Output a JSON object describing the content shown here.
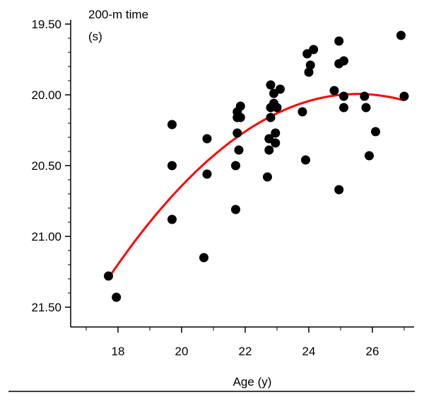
{
  "chart_data": {
    "type": "scatter",
    "ylabel_line1": "200-m time",
    "ylabel_line2": "(s)",
    "xlabel": "Age (y)",
    "xlim": [
      17,
      27.2
    ],
    "ylim": [
      21.65,
      19.45
    ],
    "y_inverted": true,
    "xticks": [
      18,
      20,
      22,
      24,
      26
    ],
    "xtick_labels": [
      "18",
      "20",
      "22",
      "24",
      "26"
    ],
    "yticks": [
      19.5,
      20.0,
      20.5,
      21.0,
      21.5
    ],
    "ytick_labels": [
      "19.50",
      "20.00",
      "20.50",
      "21.00",
      "21.50"
    ],
    "grid": false,
    "point_color": "#000000",
    "curve_color": "#ff0000",
    "points": [
      {
        "x": 17.7,
        "y": 21.28
      },
      {
        "x": 17.95,
        "y": 21.43
      },
      {
        "x": 19.7,
        "y": 20.21
      },
      {
        "x": 19.7,
        "y": 20.5
      },
      {
        "x": 19.7,
        "y": 20.88
      },
      {
        "x": 20.7,
        "y": 21.15
      },
      {
        "x": 20.8,
        "y": 20.31
      },
      {
        "x": 20.8,
        "y": 20.56
      },
      {
        "x": 21.7,
        "y": 20.5
      },
      {
        "x": 21.7,
        "y": 20.81
      },
      {
        "x": 21.75,
        "y": 20.12
      },
      {
        "x": 21.75,
        "y": 20.16
      },
      {
        "x": 21.75,
        "y": 20.27
      },
      {
        "x": 21.85,
        "y": 20.08
      },
      {
        "x": 21.85,
        "y": 20.16
      },
      {
        "x": 21.8,
        "y": 20.39
      },
      {
        "x": 22.7,
        "y": 20.58
      },
      {
        "x": 22.75,
        "y": 20.31
      },
      {
        "x": 22.75,
        "y": 20.39
      },
      {
        "x": 22.8,
        "y": 19.93
      },
      {
        "x": 22.8,
        "y": 20.09
      },
      {
        "x": 22.8,
        "y": 20.16
      },
      {
        "x": 22.9,
        "y": 19.99
      },
      {
        "x": 22.9,
        "y": 20.06
      },
      {
        "x": 22.95,
        "y": 20.27
      },
      {
        "x": 22.95,
        "y": 20.34
      },
      {
        "x": 23.0,
        "y": 20.09
      },
      {
        "x": 23.1,
        "y": 19.96
      },
      {
        "x": 23.8,
        "y": 20.12
      },
      {
        "x": 23.9,
        "y": 20.46
      },
      {
        "x": 23.95,
        "y": 19.71
      },
      {
        "x": 24.0,
        "y": 19.84
      },
      {
        "x": 24.05,
        "y": 19.79
      },
      {
        "x": 24.15,
        "y": 19.68
      },
      {
        "x": 24.8,
        "y": 19.97
      },
      {
        "x": 24.95,
        "y": 19.62
      },
      {
        "x": 24.95,
        "y": 19.78
      },
      {
        "x": 24.95,
        "y": 20.67
      },
      {
        "x": 25.1,
        "y": 19.76
      },
      {
        "x": 25.1,
        "y": 20.01
      },
      {
        "x": 25.1,
        "y": 20.09
      },
      {
        "x": 25.75,
        "y": 20.01
      },
      {
        "x": 25.8,
        "y": 20.09
      },
      {
        "x": 25.9,
        "y": 20.43
      },
      {
        "x": 26.1,
        "y": 20.26
      },
      {
        "x": 26.9,
        "y": 19.58
      },
      {
        "x": 27.0,
        "y": 20.01
      }
    ],
    "fit_curve": {
      "type": "quadratic",
      "x": [
        17.7,
        18.5,
        19.5,
        20.5,
        21.5,
        22.5,
        23.5,
        24.5,
        25.5,
        26.5,
        27.0
      ],
      "y": [
        21.31,
        21.04,
        20.75,
        20.53,
        20.33,
        20.19,
        20.09,
        20.03,
        20.0,
        20.01,
        20.03
      ]
    }
  }
}
